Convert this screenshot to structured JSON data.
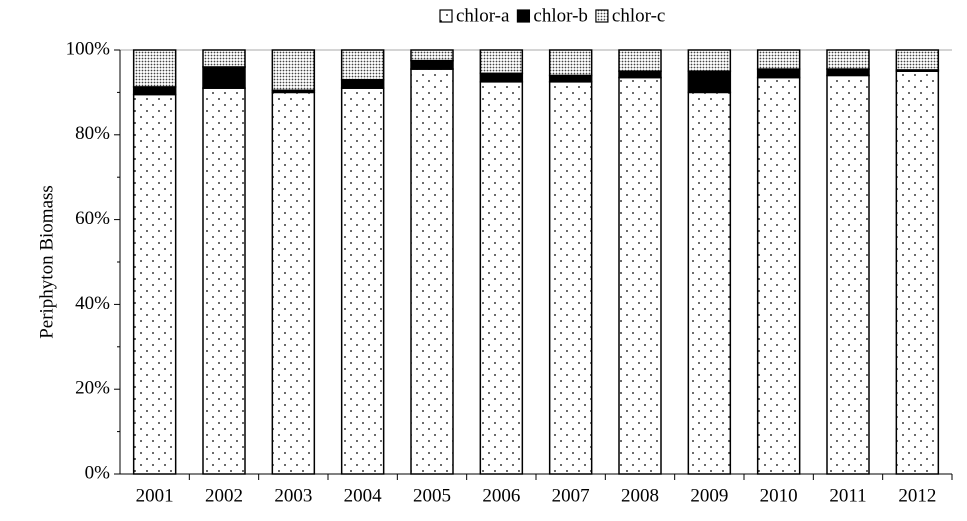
{
  "chart_data": {
    "type": "stacked_bar",
    "y_label": "Periphyton Biomass",
    "categories": [
      "2001",
      "2002",
      "2003",
      "2004",
      "2005",
      "2006",
      "2007",
      "2008",
      "2009",
      "2010",
      "2011",
      "2012"
    ],
    "series": [
      {
        "name": "chlor-a",
        "color": "#ffffff",
        "values": [
          89.5,
          91,
          90,
          91,
          95.5,
          92.5,
          92.5,
          93.5,
          90,
          93.5,
          94,
          95
        ]
      },
      {
        "name": "chlor-b",
        "color": "#000000",
        "values": [
          1.8,
          5,
          0.5,
          2,
          2,
          2,
          1.5,
          1.5,
          5,
          2,
          1.5,
          0.3
        ]
      },
      {
        "name": "chlor-c",
        "color": "#b0b0b0",
        "values": [
          8.7,
          4,
          9.5,
          7,
          2.5,
          5.5,
          6,
          5,
          5,
          4.5,
          4.5,
          4.7
        ]
      }
    ],
    "ylim": [
      0,
      100
    ],
    "yticks": [
      {
        "value": 0,
        "label": "0%"
      },
      {
        "value": 20,
        "label": "20%"
      },
      {
        "value": 40,
        "label": "40%"
      },
      {
        "value": 60,
        "label": "60%"
      },
      {
        "value": 80,
        "label": "80%"
      },
      {
        "value": 100,
        "label": "100%"
      }
    ],
    "legend": "top"
  }
}
